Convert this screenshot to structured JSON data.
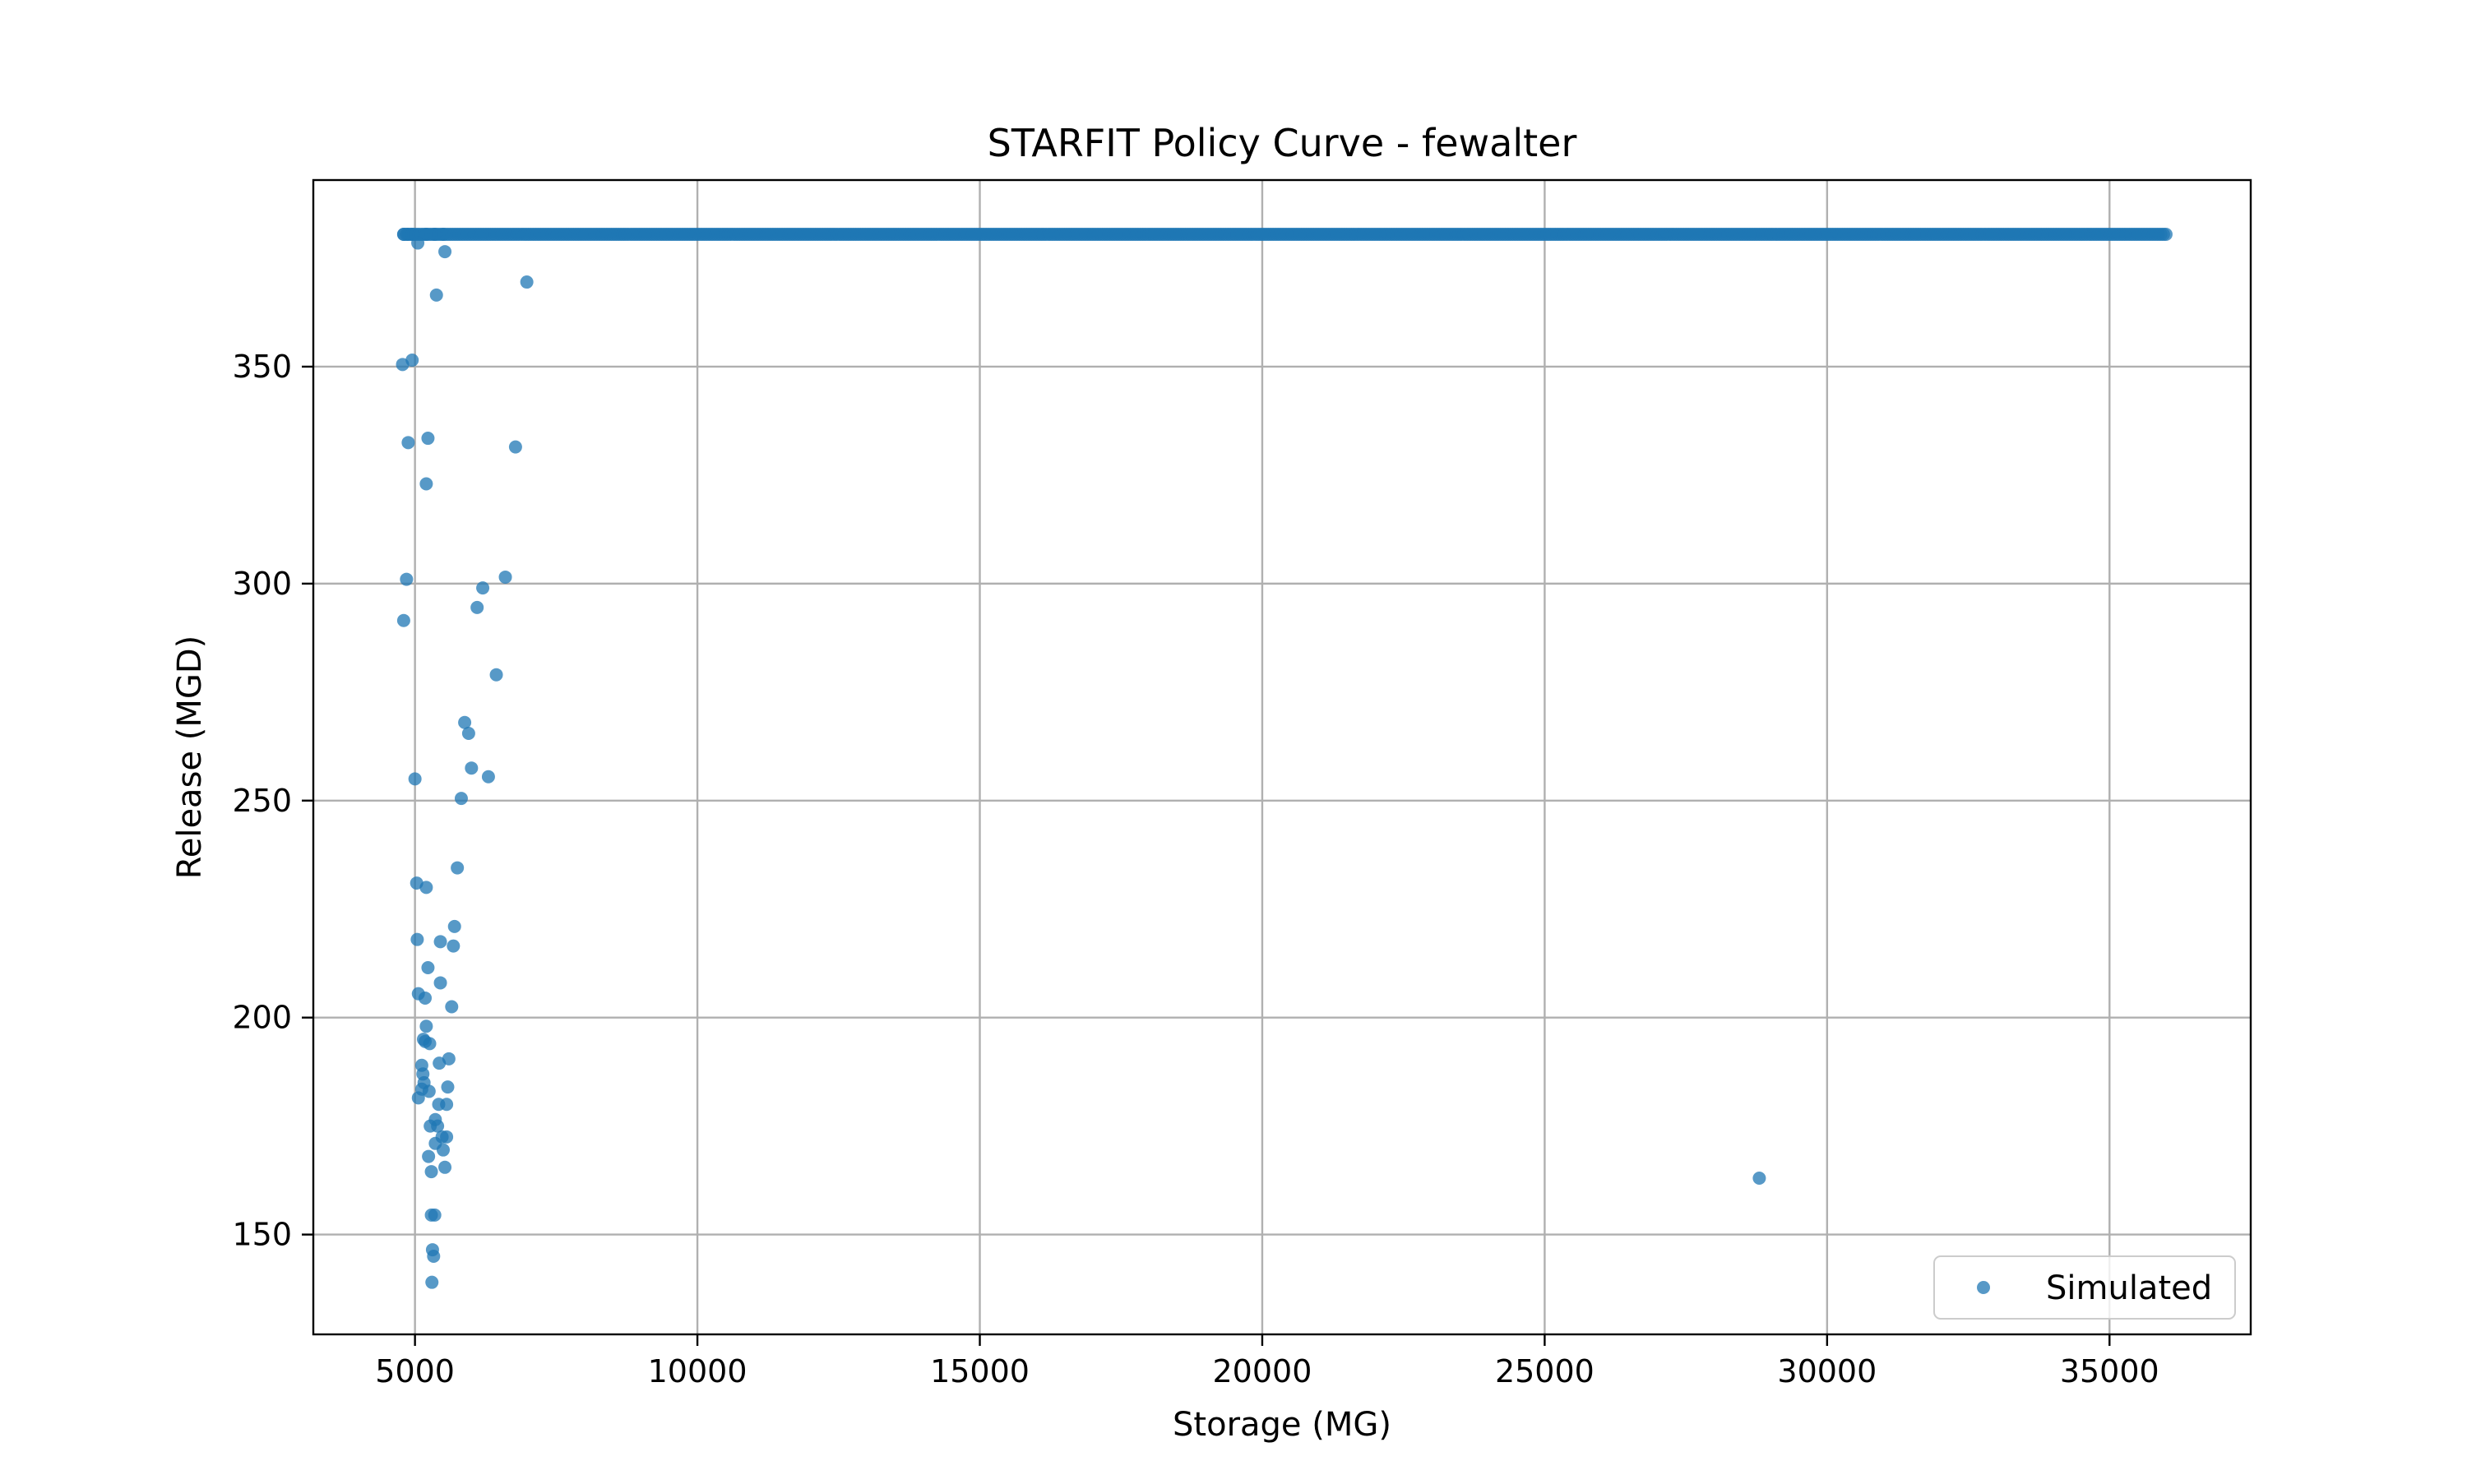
{
  "chart_data": {
    "type": "scatter",
    "title": "STARFIT Policy Curve - fewalter",
    "xlabel": "Storage (MG)",
    "ylabel": "Release (MGD)",
    "xlim": [
      3200,
      37500
    ],
    "ylim": [
      127,
      393
    ],
    "xticks": [
      5000,
      10000,
      15000,
      20000,
      25000,
      30000,
      35000
    ],
    "yticks": [
      150,
      200,
      250,
      300,
      350
    ],
    "grid": true,
    "legend_position": "bottom-right",
    "series": [
      {
        "name": "Simulated",
        "color": "#1f77b4",
        "marker": "circle",
        "plateau": {
          "y": 380.5,
          "x_start": 4800,
          "x_end": 36000
        },
        "points": [
          [
            4800,
            380.5
          ],
          [
            4870,
            380.5
          ],
          [
            4950,
            380.5
          ],
          [
            5200,
            380.5
          ],
          [
            5350,
            380.5
          ],
          [
            5500,
            380.5
          ],
          [
            5050,
            378.5
          ],
          [
            5530,
            376.5
          ],
          [
            5380,
            366.5
          ],
          [
            6980,
            369.5
          ],
          [
            4780,
            350.5
          ],
          [
            4950,
            351.5
          ],
          [
            4880,
            332.5
          ],
          [
            5230,
            333.5
          ],
          [
            6780,
            331.5
          ],
          [
            5200,
            323.0
          ],
          [
            4850,
            301.0
          ],
          [
            6600,
            301.5
          ],
          [
            6200,
            299.0
          ],
          [
            6100,
            294.5
          ],
          [
            4800,
            291.5
          ],
          [
            6440,
            279.0
          ],
          [
            5880,
            268.0
          ],
          [
            5950,
            265.5
          ],
          [
            6000,
            257.5
          ],
          [
            6300,
            255.5
          ],
          [
            5000,
            255.0
          ],
          [
            5820,
            250.5
          ],
          [
            5750,
            234.5
          ],
          [
            5030,
            231.0
          ],
          [
            5200,
            230.0
          ],
          [
            5700,
            221.0
          ],
          [
            5040,
            218.0
          ],
          [
            5450,
            217.5
          ],
          [
            5680,
            216.5
          ],
          [
            5230,
            211.5
          ],
          [
            5450,
            208.0
          ],
          [
            5060,
            205.5
          ],
          [
            5180,
            204.5
          ],
          [
            5650,
            202.5
          ],
          [
            5200,
            198.0
          ],
          [
            5150,
            195.0
          ],
          [
            5180,
            194.5
          ],
          [
            5260,
            194.0
          ],
          [
            5600,
            190.5
          ],
          [
            5430,
            189.5
          ],
          [
            5120,
            189.0
          ],
          [
            5140,
            187.0
          ],
          [
            5160,
            185.0
          ],
          [
            5120,
            183.5
          ],
          [
            5250,
            183.0
          ],
          [
            5580,
            184.0
          ],
          [
            5060,
            181.5
          ],
          [
            5420,
            180.0
          ],
          [
            5560,
            180.0
          ],
          [
            5270,
            175.0
          ],
          [
            5360,
            176.5
          ],
          [
            5400,
            175.0
          ],
          [
            5480,
            172.5
          ],
          [
            5560,
            172.5
          ],
          [
            5360,
            171.0
          ],
          [
            5500,
            169.5
          ],
          [
            5240,
            168.0
          ],
          [
            5530,
            165.5
          ],
          [
            5290,
            164.5
          ],
          [
            5290,
            154.5
          ],
          [
            5350,
            154.5
          ],
          [
            5310,
            146.5
          ],
          [
            5330,
            145.0
          ],
          [
            5300,
            139.0
          ],
          [
            28800,
            163.0
          ]
        ]
      }
    ]
  }
}
